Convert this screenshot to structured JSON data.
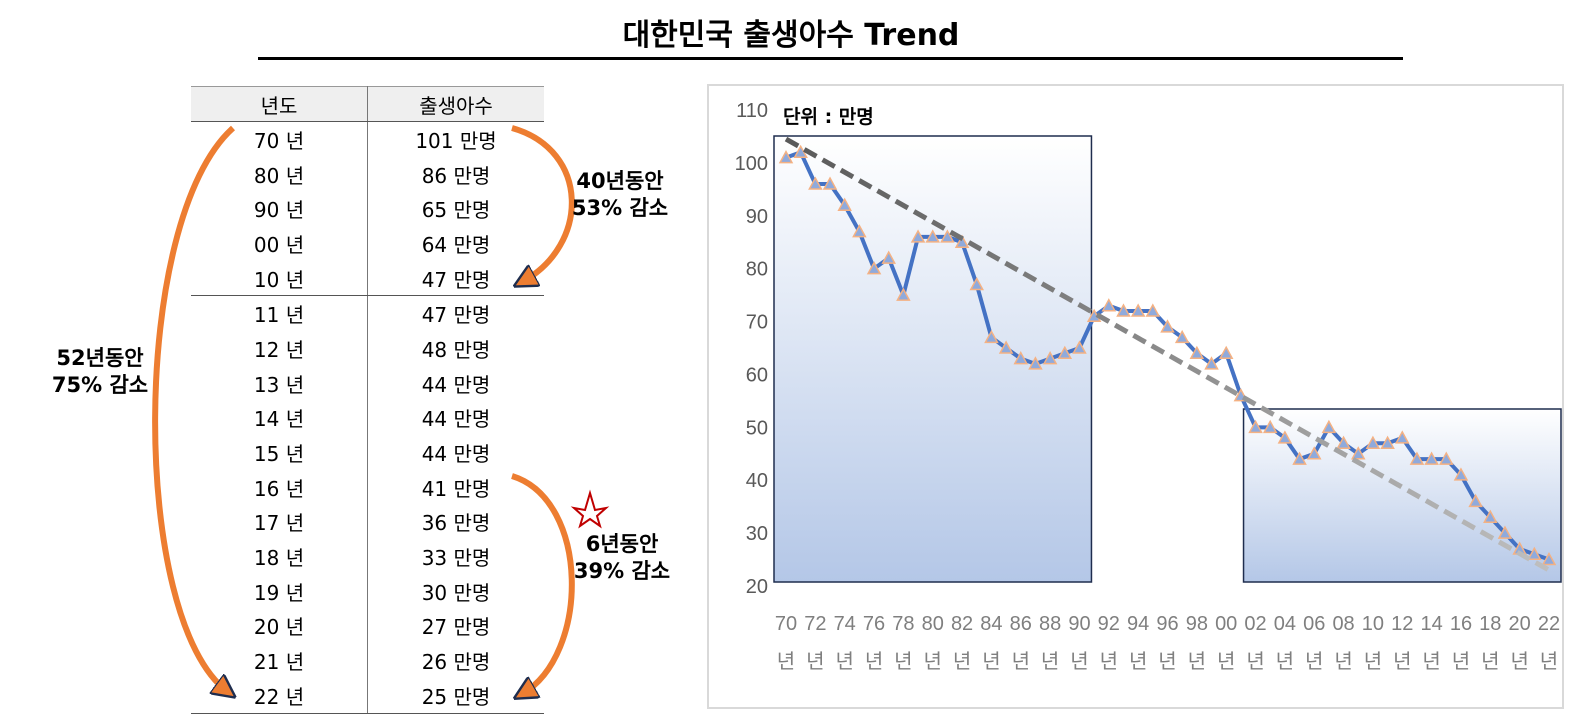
{
  "title": "대한민국 출생아수 Trend",
  "table": {
    "headers": [
      "년도",
      "출생아수"
    ],
    "rows": [
      {
        "year": "70 년",
        "births": "101 만명"
      },
      {
        "year": "80 년",
        "births": "86 만명"
      },
      {
        "year": "90 년",
        "births": "65 만명"
      },
      {
        "year": "00 년",
        "births": "64 만명"
      },
      {
        "year": "10 년",
        "births": "47 만명"
      },
      {
        "year": "11 년",
        "births": "47 만명"
      },
      {
        "year": "12 년",
        "births": "48 만명"
      },
      {
        "year": "13 년",
        "births": "44 만명"
      },
      {
        "year": "14 년",
        "births": "44 만명"
      },
      {
        "year": "15 년",
        "births": "44 만명"
      },
      {
        "year": "16 년",
        "births": "41 만명"
      },
      {
        "year": "17 년",
        "births": "36 만명"
      },
      {
        "year": "18 년",
        "births": "33 만명"
      },
      {
        "year": "19 년",
        "births": "30 만명"
      },
      {
        "year": "20 년",
        "births": "27 만명"
      },
      {
        "year": "21 년",
        "births": "26 만명"
      },
      {
        "year": "22 년",
        "births": "25 만명"
      }
    ]
  },
  "notes": {
    "n40": [
      "40년동안",
      "53%  감소"
    ],
    "n52": [
      "52년동안",
      "75%  감소"
    ],
    "n6": [
      "6년동안",
      "39%  감소"
    ]
  },
  "colors": {
    "arrow": "#ed7d31",
    "line": "#4472c4",
    "marker_fill": "#8faadc",
    "marker_edge": "#f4b183",
    "trend": "#595959",
    "star": "#c00000",
    "box_border": "#1f2d4e"
  },
  "chart_data": {
    "type": "line",
    "unit_label": "단위 : 만명",
    "ylim": [
      20,
      110
    ],
    "yticks": [
      20,
      30,
      40,
      50,
      60,
      70,
      80,
      90,
      100,
      110
    ],
    "x": [
      1970,
      1971,
      1972,
      1973,
      1974,
      1975,
      1976,
      1977,
      1978,
      1979,
      1980,
      1981,
      1982,
      1983,
      1984,
      1985,
      1986,
      1987,
      1988,
      1989,
      1990,
      1991,
      1992,
      1993,
      1994,
      1995,
      1996,
      1997,
      1998,
      1999,
      2000,
      2001,
      2002,
      2003,
      2004,
      2005,
      2006,
      2007,
      2008,
      2009,
      2010,
      2011,
      2012,
      2013,
      2014,
      2015,
      2016,
      2017,
      2018,
      2019,
      2020,
      2021,
      2022
    ],
    "xtick_labels": [
      "70",
      "72",
      "74",
      "76",
      "78",
      "80",
      "82",
      "84",
      "86",
      "88",
      "90",
      "92",
      "94",
      "96",
      "98",
      "00",
      "02",
      "04",
      "06",
      "08",
      "10",
      "12",
      "14",
      "16",
      "18",
      "20",
      "22"
    ],
    "xtick_suffix": "년",
    "series": [
      {
        "values": [
          101,
          102,
          96,
          96,
          92,
          87,
          80,
          82,
          75,
          86,
          86,
          86,
          85,
          77,
          67,
          65,
          63,
          62,
          63,
          64,
          65,
          71,
          73,
          72,
          72,
          72,
          69,
          67,
          64,
          62,
          64,
          56,
          50,
          50,
          48,
          44,
          45,
          50,
          47,
          45,
          47,
          47,
          48,
          44,
          44,
          44,
          41,
          36,
          33,
          30,
          27,
          26,
          25
        ]
      }
    ],
    "trend_line": {
      "x": [
        1970,
        2022
      ],
      "y": [
        104.5,
        23
      ]
    },
    "highlight_ranges": [
      {
        "x": [
          1970,
          1990
        ]
      },
      {
        "x": [
          2002,
          2022
        ]
      }
    ]
  }
}
